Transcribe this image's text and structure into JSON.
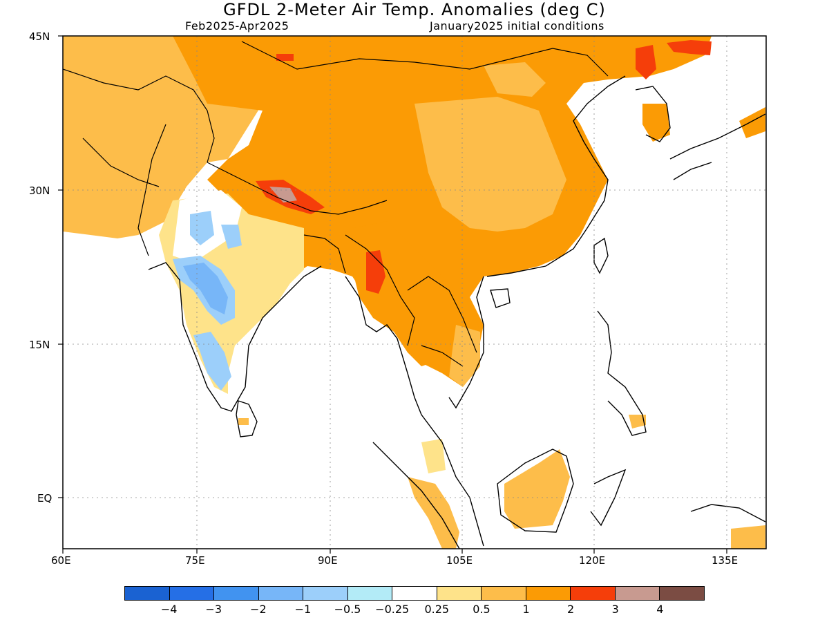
{
  "title": "GFDL 2-Meter Air Temp. Anomalies (deg C)",
  "period": "Feb2025-Apr2025",
  "init": "January2025 initial conditions",
  "lat_labels": [
    "45N",
    "30N",
    "15N",
    "EQ"
  ],
  "lon_labels": [
    "60E",
    "75E",
    "90E",
    "105E",
    "120E",
    "135E"
  ],
  "colorbar": {
    "colors": [
      "#1a62d2",
      "#256fe6",
      "#4193f0",
      "#77b6f8",
      "#9ccffa",
      "#b3ebf7",
      "#ffffff",
      "#fee38a",
      "#fdbd4a",
      "#fb9b05",
      "#f53e0a",
      "#c89a90",
      "#7b4c43"
    ],
    "labels": [
      "−4",
      "−3",
      "−2",
      "−1",
      "−0.5",
      "−0.25",
      "0.25",
      "0.5",
      "1",
      "2",
      "3",
      "4"
    ]
  },
  "legend_colors": {
    "light_orange": "#fdbd4a",
    "orange": "#fb9b05",
    "red": "#f53e0a",
    "pale_yellow": "#fee38a",
    "light_blue": "#9ccffa",
    "blue": "#77b6f8",
    "brown_pink": "#c89a90"
  }
}
